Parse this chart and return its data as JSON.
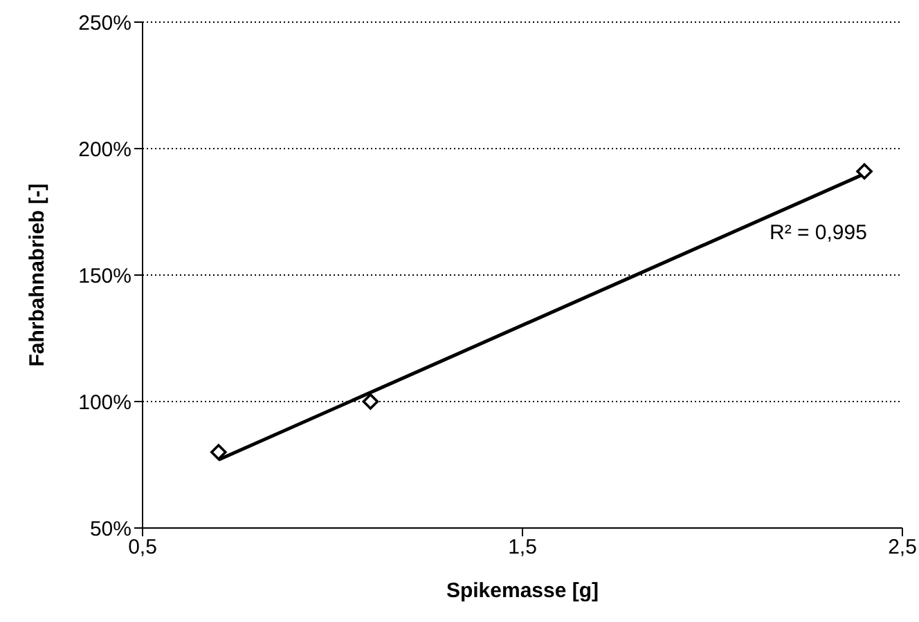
{
  "chart_data": {
    "type": "scatter",
    "xlabel": "Spikemasse [g]",
    "ylabel": "Fahrbahnabrieb [-]",
    "xlim": [
      0.5,
      2.5
    ],
    "xticks": [
      {
        "value": 0.5,
        "label": "0,5"
      },
      {
        "value": 1.5,
        "label": "1,5"
      },
      {
        "value": 2.5,
        "label": "2,5"
      }
    ],
    "ylim": [
      50,
      250
    ],
    "yticks": [
      {
        "value": 50,
        "label": "50%"
      },
      {
        "value": 100,
        "label": "100%"
      },
      {
        "value": 150,
        "label": "150%"
      },
      {
        "value": 200,
        "label": "200%"
      },
      {
        "value": 250,
        "label": "250%"
      }
    ],
    "grid": "y",
    "legend": false,
    "marker": "diamond",
    "series": [
      {
        "color": "#000000",
        "x": [
          0.7,
          1.1,
          2.4
        ],
        "values": [
          80,
          100,
          191
        ]
      },
      {
        "type": "line",
        "color": "#000000",
        "x": [
          0.7,
          2.4
        ],
        "values": [
          77,
          190
        ],
        "marker": "none",
        "line_style": "solid"
      }
    ],
    "annotations": [
      "R² = 0,995"
    ]
  }
}
